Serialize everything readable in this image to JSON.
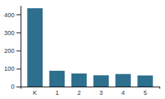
{
  "chart_data": {
    "type": "bar",
    "categories": [
      "K",
      "1",
      "2",
      "3",
      "4",
      "5"
    ],
    "values": [
      435,
      88,
      73,
      63,
      70,
      62
    ],
    "color": "#2e6f8e",
    "ylim": [
      0,
      450
    ],
    "yticks": [
      0,
      100,
      200,
      300,
      400
    ],
    "grid": false
  }
}
